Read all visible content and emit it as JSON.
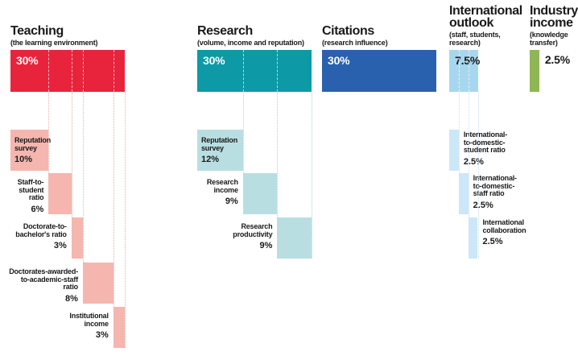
{
  "chart_data": {
    "type": "bar",
    "title": "",
    "unit": "%",
    "categories": [
      "Teaching",
      "Research",
      "Citations",
      "International outlook",
      "Industry income"
    ],
    "values": [
      30,
      30,
      30,
      7.5,
      2.5
    ],
    "breakdown": [
      {
        "category": "Teaching",
        "subtitle": "(the learning environment)",
        "total": 30,
        "components": [
          {
            "label": "Reputation survey",
            "value": 10
          },
          {
            "label": "Staff-to-student ratio",
            "value": 6
          },
          {
            "label": "Doctorate-to-bachelor's ratio",
            "value": 3
          },
          {
            "label": "Doctorates-awarded-to-academic-staff ratio",
            "value": 8
          },
          {
            "label": "Institutional income",
            "value": 3
          }
        ]
      },
      {
        "category": "Research",
        "subtitle": "(volume, income and reputation)",
        "total": 30,
        "components": [
          {
            "label": "Reputation survey",
            "value": 12
          },
          {
            "label": "Research income",
            "value": 9
          },
          {
            "label": "Research productivity",
            "value": 9
          }
        ]
      },
      {
        "category": "Citations",
        "subtitle": "(research influence)",
        "total": 30,
        "components": []
      },
      {
        "category": "International outlook",
        "subtitle": "(staff, students, research)",
        "total": 7.5,
        "components": [
          {
            "label": "International-to-domestic-student ratio",
            "value": 2.5
          },
          {
            "label": "International-to-domestic-staff ratio",
            "value": 2.5
          },
          {
            "label": "International collaboration",
            "value": 2.5
          }
        ]
      },
      {
        "category": "Industry income",
        "subtitle": "(knowledge transfer)",
        "total": 2.5,
        "components": []
      }
    ]
  },
  "pillars": [
    {
      "id": "teaching",
      "title_lines": [
        "Teaching"
      ],
      "subtitle_lines": [
        "(the learning environment)"
      ],
      "total_label": "30%",
      "total_value": 30,
      "total_outside": false,
      "colors": {
        "bar": "#e8243d",
        "sub": "#f4b6af",
        "guide": "#f0aca5",
        "total_text": "#ffffff"
      },
      "subs": [
        {
          "label_lines": [
            "Reputation",
            "survey"
          ],
          "pct": "10%",
          "value": 10,
          "label_pos": "inside"
        },
        {
          "label_lines": [
            "Staff-to-",
            "student",
            "ratio"
          ],
          "pct": "6%",
          "value": 6,
          "label_pos": "left"
        },
        {
          "label_lines": [
            "Doctorate-to-",
            "bachelor's ratio"
          ],
          "pct": "3%",
          "value": 3,
          "label_pos": "left"
        },
        {
          "label_lines": [
            "Doctorates-awarded-",
            "to-academic-staff",
            "ratio"
          ],
          "pct": "8%",
          "value": 8,
          "label_pos": "left"
        },
        {
          "label_lines": [
            "Institutional",
            "income"
          ],
          "pct": "3%",
          "value": 3,
          "label_pos": "left"
        }
      ]
    },
    {
      "id": "research",
      "title_lines": [
        "Research"
      ],
      "subtitle_lines": [
        "(volume, income and reputation)"
      ],
      "total_label": "30%",
      "total_value": 30,
      "total_outside": false,
      "colors": {
        "bar": "#0d9aa6",
        "sub": "#b9dee1",
        "guide": "#a5d4d8",
        "total_text": "#ffffff"
      },
      "subs": [
        {
          "label_lines": [
            "Reputation",
            "survey"
          ],
          "pct": "12%",
          "value": 12,
          "label_pos": "inside"
        },
        {
          "label_lines": [
            "Research",
            "income"
          ],
          "pct": "9%",
          "value": 9,
          "label_pos": "left"
        },
        {
          "label_lines": [
            "Research",
            "productivity"
          ],
          "pct": "9%",
          "value": 9,
          "label_pos": "left"
        }
      ]
    },
    {
      "id": "citations",
      "title_lines": [
        "Citations"
      ],
      "subtitle_lines": [
        "(research influence)"
      ],
      "total_label": "30%",
      "total_value": 30,
      "total_outside": false,
      "colors": {
        "bar": "#2a61ae",
        "sub": "#2a61ae",
        "guide": "#2a61ae",
        "total_text": "#ffffff"
      },
      "subs": []
    },
    {
      "id": "international",
      "title_lines": [
        "International",
        "outlook"
      ],
      "subtitle_lines": [
        "(staff, students,",
        "research)"
      ],
      "total_label": "7.5%",
      "total_value": 7.5,
      "total_outside": false,
      "colors": {
        "bar": "#a7d7ef",
        "sub": "#cbe7f8",
        "guide": "#bfe0f3",
        "total_text": "#1a1a1a"
      },
      "subs": [
        {
          "label_lines": [
            "International-",
            "to-domestic-",
            "student ratio"
          ],
          "pct": "2.5%",
          "value": 2.5,
          "label_pos": "right"
        },
        {
          "label_lines": [
            "International-",
            "to-domestic-",
            "staff ratio"
          ],
          "pct": "2.5%",
          "value": 2.5,
          "label_pos": "right"
        },
        {
          "label_lines": [
            "International",
            "collaboration"
          ],
          "pct": "2.5%",
          "value": 2.5,
          "label_pos": "right"
        }
      ]
    },
    {
      "id": "industry",
      "title_lines": [
        "Industry",
        "income"
      ],
      "subtitle_lines": [
        "(knowledge",
        "transfer)"
      ],
      "total_label": "2.5%",
      "total_value": 2.5,
      "total_outside": true,
      "colors": {
        "bar": "#8fb654",
        "sub": "#8fb654",
        "guide": "#8fb654",
        "total_text": "#1a1a1a"
      },
      "subs": []
    }
  ]
}
